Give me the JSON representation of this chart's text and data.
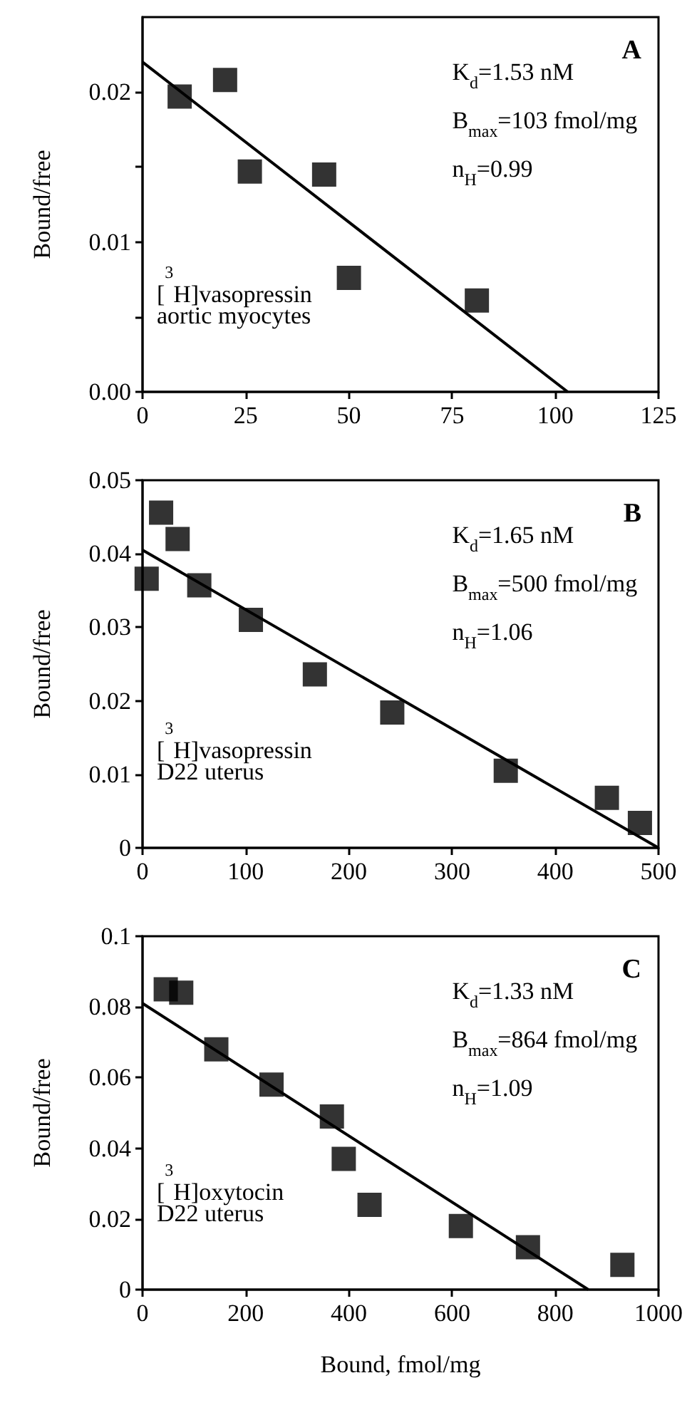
{
  "chart_data": [
    {
      "type": "scatter",
      "ylabel": "Bound/free",
      "marker": "square",
      "xlim": [
        0,
        125
      ],
      "xticks": [
        0,
        25,
        50,
        75,
        100,
        125
      ],
      "ylim": [
        0,
        0.025
      ],
      "yticks": [
        {
          "value": 0,
          "label": "0.00"
        },
        {
          "value": 0.005,
          "label": null
        },
        0.01,
        {
          "value": 0.015,
          "label": null
        },
        0.02
      ],
      "annotations": [
        "A",
        "K$_{d}$=1.53 nM",
        "B$_{max}$=103 fmol/mg",
        "n$_{H}$=0.99",
        "[$^{3}$H]vasopressin",
        "aortic myocytes"
      ],
      "series": [
        {
          "color": "#000000",
          "x": [
            9,
            20,
            26,
            44,
            50,
            81
          ],
          "values": [
            0.0197,
            0.0208,
            0.0147,
            0.0145,
            0.0076,
            0.0061
          ]
        },
        {
          "type": "line",
          "marker": "none",
          "line_style": "solid",
          "color": "#000000",
          "x": [
            0,
            103
          ],
          "values": [
            0.022,
            0
          ]
        }
      ]
    },
    {
      "type": "scatter",
      "ylabel": "Bound/free",
      "marker": "square",
      "xlim": [
        0,
        500
      ],
      "xticks": [
        0,
        100,
        200,
        300,
        400,
        500
      ],
      "ylim": [
        0,
        0.05
      ],
      "yticks": [
        0,
        0.01,
        0.02,
        0.03,
        0.04,
        0.05
      ],
      "annotations": [
        "B",
        "K$_{d}$=1.65 nM",
        "B$_{max}$=500 fmol/mg",
        "n$_{H}$=1.06",
        "[$^{3}$H]vasopressin",
        "D22 uterus"
      ],
      "series": [
        {
          "color": "#000000",
          "x": [
            4,
            18,
            34,
            55,
            105,
            167,
            242,
            352,
            450,
            482
          ],
          "values": [
            0.0366,
            0.0456,
            0.042,
            0.0357,
            0.031,
            0.0236,
            0.0184,
            0.0105,
            0.0068,
            0.0034
          ]
        },
        {
          "type": "line",
          "marker": "none",
          "line_style": "solid",
          "color": "#000000",
          "x": [
            0,
            500
          ],
          "values": [
            0.0405,
            0
          ]
        }
      ]
    },
    {
      "type": "scatter",
      "ylabel": "Bound/free",
      "xlabel": "Bound, fmol/mg",
      "marker": "square",
      "xlim": [
        0,
        1000
      ],
      "xticks": [
        0,
        200,
        400,
        600,
        800,
        1000
      ],
      "ylim": [
        0,
        0.1
      ],
      "yticks": [
        0,
        0.02,
        0.04,
        0.06,
        0.08,
        {
          "value": 0.1,
          "label": "0.1"
        }
      ],
      "annotations": [
        "C",
        "K$_{d}$=1.33 nM",
        "B$_{max}$=864 fmol/mg",
        "n$_{H}$=1.09",
        "[$^{3}$H]oxytocin",
        "D22 uterus"
      ],
      "series": [
        {
          "color": "#000000",
          "x": [
            45,
            75,
            143,
            250,
            367,
            390,
            440,
            617,
            747,
            930
          ],
          "values": [
            0.085,
            0.084,
            0.068,
            0.058,
            0.049,
            0.037,
            0.024,
            0.018,
            0.012,
            0.007
          ]
        },
        {
          "type": "line",
          "marker": "none",
          "line_style": "solid",
          "color": "#000000",
          "x": [
            0,
            864
          ],
          "values": [
            0.081,
            0
          ]
        }
      ]
    }
  ]
}
